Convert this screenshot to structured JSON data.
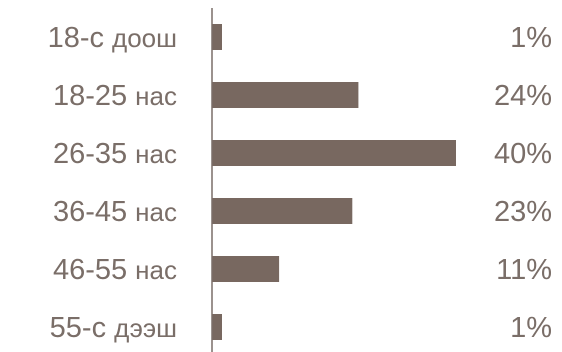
{
  "chart_data": {
    "type": "bar",
    "orientation": "horizontal",
    "categories": [
      {
        "num": "18-с",
        "unit": "доош"
      },
      {
        "num": "18-25",
        "unit": "нас"
      },
      {
        "num": "26-35",
        "unit": "нас"
      },
      {
        "num": "36-45",
        "unit": "нас"
      },
      {
        "num": "46-55",
        "unit": "нас"
      },
      {
        "num": "55-с",
        "unit": "дээш"
      }
    ],
    "values": [
      1,
      24,
      40,
      23,
      11,
      1
    ],
    "value_labels": [
      "1%",
      "24%",
      "40%",
      "23%",
      "11%",
      "1%"
    ],
    "xlim": [
      0,
      40
    ],
    "bar_color": "#786860",
    "axis_color": "#7a6e68",
    "text_color": "#7a6e68",
    "grid": false,
    "legend": "none"
  }
}
